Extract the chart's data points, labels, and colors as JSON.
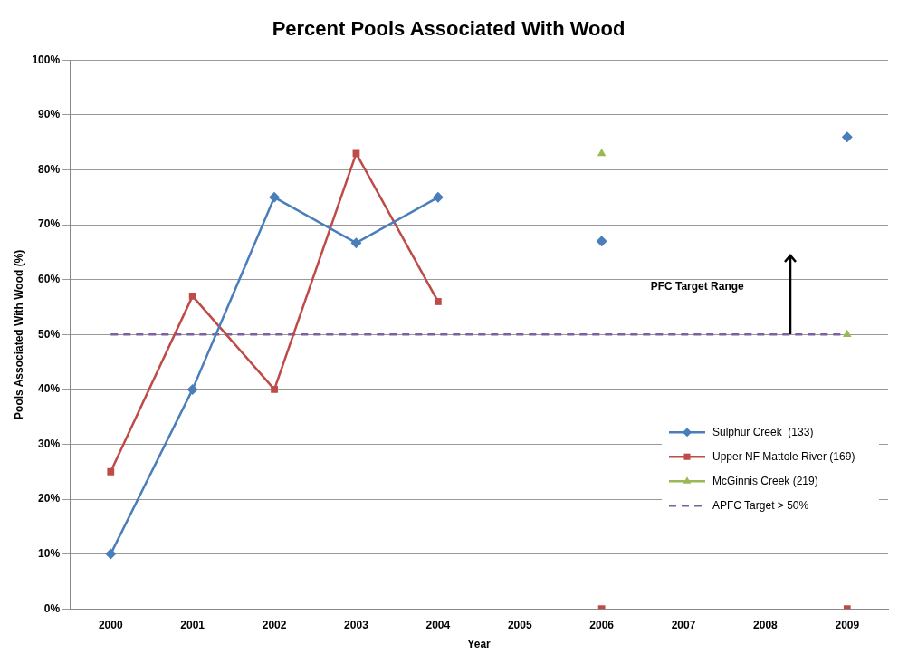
{
  "chart_data": {
    "type": "line",
    "title": "Percent Pools Associated With Wood",
    "xlabel": "Year",
    "ylabel": "Pools Associated With Wood (%)",
    "categories": [
      "2000",
      "2001",
      "2002",
      "2003",
      "2004",
      "2005",
      "2006",
      "2007",
      "2008",
      "2009"
    ],
    "series": [
      {
        "name": "Sulphur Creek  (133)",
        "color": "#4a7ebb",
        "marker": "diamond",
        "values": [
          10,
          40,
          75,
          66.7,
          75,
          null,
          67,
          null,
          null,
          86
        ]
      },
      {
        "name": "Upper NF Mattole River (169)",
        "color": "#be4b48",
        "marker": "square",
        "values": [
          25,
          57,
          40,
          83,
          56,
          null,
          0,
          null,
          null,
          0
        ]
      },
      {
        "name": "McGinnis Creek (219)",
        "color": "#98b954",
        "marker": "triangle",
        "values": [
          null,
          null,
          null,
          null,
          null,
          null,
          83,
          null,
          null,
          50
        ]
      },
      {
        "name": "APFC Target > 50%",
        "color": "#7d60a0",
        "marker": "none",
        "line_style": "dashed",
        "values": [
          50,
          50,
          50,
          50,
          50,
          50,
          50,
          50,
          50,
          50
        ]
      }
    ],
    "ylim": [
      0,
      100
    ],
    "yticks": [
      {
        "value": 0,
        "label": "0%"
      },
      {
        "value": 10,
        "label": "10%"
      },
      {
        "value": 20,
        "label": "20%"
      },
      {
        "value": 30,
        "label": "30%"
      },
      {
        "value": 40,
        "label": "40%"
      },
      {
        "value": 50,
        "label": "50%"
      },
      {
        "value": 60,
        "label": "60%"
      },
      {
        "value": 70,
        "label": "70%"
      },
      {
        "value": 80,
        "label": "80%"
      },
      {
        "value": 90,
        "label": "90%"
      },
      {
        "value": 100,
        "label": "100%"
      }
    ],
    "grid": "y",
    "legend": "bottom right",
    "annotations": [
      "PFC Target Range"
    ]
  }
}
